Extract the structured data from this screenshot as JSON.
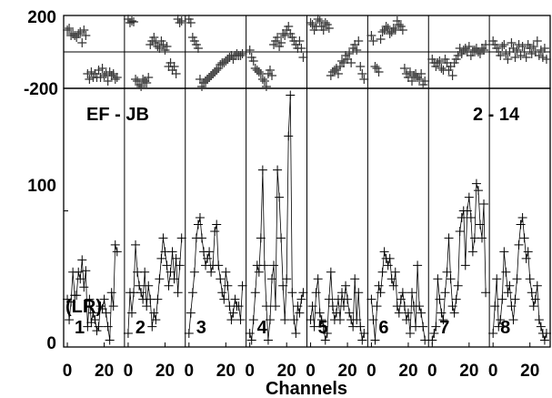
{
  "chart_data": {
    "type": "line",
    "baseline": "EF - JB",
    "label_left": "EF - JB",
    "label_right": "2 - 14",
    "polarization": "(LR)",
    "xlabel": "Channels",
    "x_ticks": [
      "0",
      "20"
    ],
    "x_range": [
      -2,
      31
    ],
    "phase_panel": {
      "ylim": [
        -200,
        200
      ],
      "y_ticks": [
        "200",
        "-200"
      ]
    },
    "amp_panel": {
      "ylim": [
        0,
        190
      ],
      "y_ticks": [
        "100",
        "0"
      ]
    },
    "subbands": [
      {
        "label": "1",
        "amp": [
          35,
          20,
          33,
          55,
          38,
          38,
          55,
          50,
          64,
          44,
          56,
          15,
          35,
          18,
          25,
          20,
          12,
          15,
          30,
          28,
          35,
          25,
          15,
          5,
          40,
          30,
          75,
          70
        ],
        "phase": [
          120,
          130,
          90,
          100,
          90,
          80,
          100,
          110,
          50,
          120,
          90,
          -120,
          -150,
          -110,
          -140,
          -120,
          -140,
          -100,
          -140,
          -90,
          -130,
          -120,
          -160,
          -110,
          -130,
          -120,
          -150,
          -140
        ]
      },
      {
        "label": "2",
        "amp": [
          10,
          40,
          25,
          40,
          75,
          55,
          45,
          40,
          35,
          55,
          30,
          45,
          35,
          15,
          25,
          20,
          35,
          50,
          65,
          80,
          70,
          60,
          45,
          55,
          70,
          50,
          65,
          40,
          60,
          80
        ],
        "phase": [
          180,
          160,
          170,
          165,
          -150,
          -160,
          -180,
          -190,
          -150,
          -160,
          -170,
          -140,
          40,
          60,
          80,
          50,
          30,
          20,
          60,
          40,
          10,
          30,
          -80,
          -60,
          -100,
          -80,
          -120,
          180,
          160,
          170
        ]
      },
      {
        "label": "3",
        "amp": [
          10,
          25,
          40,
          55,
          80,
          90,
          95,
          80,
          70,
          60,
          65,
          70,
          55,
          60,
          85,
          90,
          60,
          50,
          40,
          35,
          55,
          45,
          30,
          20,
          25,
          35,
          30,
          30,
          20,
          45
        ],
        "phase": [
          180,
          160,
          80,
          60,
          40,
          20,
          -150,
          -190,
          -170,
          -160,
          -150,
          -140,
          -130,
          -120,
          -110,
          -100,
          -90,
          -70,
          -60,
          -60,
          -50,
          -40,
          -30,
          -20,
          -40,
          -20,
          -10,
          -20,
          -20,
          -10
        ]
      },
      {
        "label": "4",
        "amp": [
          10,
          5,
          20,
          40,
          60,
          55,
          80,
          130,
          60,
          30,
          5,
          20,
          50,
          60,
          30,
          130,
          110,
          80,
          45,
          20,
          50,
          155,
          185,
          40,
          20,
          10,
          30,
          25,
          35,
          40
        ],
        "phase": [
          10,
          -30,
          -50,
          -90,
          -100,
          -110,
          -120,
          -150,
          -160,
          -190,
          -120,
          -100,
          -130,
          40,
          60,
          80,
          30,
          50,
          100,
          90,
          120,
          140,
          100,
          80,
          60,
          40,
          20,
          60,
          20,
          -30
        ]
      },
      {
        "label": "5",
        "amp": [
          20,
          30,
          15,
          40,
          50,
          25,
          20,
          15,
          5,
          10,
          35,
          55,
          30,
          20,
          25,
          35,
          20,
          40,
          30,
          45,
          35,
          25,
          20,
          15,
          50,
          20,
          40,
          15,
          5,
          10
        ],
        "phase": [
          160,
          150,
          120,
          140,
          180,
          170,
          140,
          120,
          160,
          150,
          130,
          -130,
          -110,
          -100,
          -90,
          -120,
          -80,
          -50,
          -60,
          -20,
          -40,
          -10,
          -60,
          20,
          40,
          10,
          60,
          -80,
          -120,
          -150
        ]
      },
      {
        "label": "6",
        "amp": [
          35,
          20,
          5,
          30,
          45,
          40,
          55,
          70,
          65,
          60,
          65,
          50,
          45,
          55,
          30,
          25,
          35,
          40,
          30,
          20,
          25,
          10,
          40,
          30,
          15,
          60,
          30,
          25,
          15,
          5
        ],
        "phase": [
          90,
          60,
          -80,
          -90,
          -110,
          70,
          110,
          120,
          140,
          130,
          100,
          110,
          130,
          120,
          170,
          150,
          140,
          120,
          -90,
          -120,
          -140,
          -110,
          -160,
          -130,
          -120,
          -140,
          -150,
          -120,
          -180,
          -160
        ]
      },
      {
        "label": "7",
        "amp": [
          5,
          10,
          15,
          50,
          35,
          25,
          20,
          40,
          55,
          80,
          50,
          30,
          25,
          35,
          45,
          85,
          95,
          100,
          60,
          100,
          110,
          95,
          70,
          80,
          120,
          115,
          90,
          80,
          105,
          40
        ],
        "phase": [
          -40,
          -60,
          -80,
          -60,
          -50,
          -90,
          -100,
          -40,
          -60,
          -100,
          -80,
          -130,
          -60,
          -40,
          -20,
          20,
          -10,
          10,
          20,
          0,
          30,
          -20,
          0,
          10,
          20,
          0,
          -10,
          20,
          10,
          40
        ]
      },
      {
        "label": "8",
        "amp": [
          10,
          30,
          50,
          15,
          20,
          35,
          70,
          55,
          40,
          45,
          30,
          20,
          35,
          50,
          75,
          90,
          95,
          80,
          65,
          70,
          50,
          40,
          30,
          35,
          45,
          20,
          15,
          10,
          5,
          10
        ],
        "phase": [
          60,
          40,
          20,
          0,
          -20,
          30,
          40,
          -10,
          -40,
          0,
          50,
          20,
          -30,
          10,
          40,
          -20,
          30,
          0,
          -30,
          40,
          20,
          -10,
          30,
          0,
          60,
          -20,
          10,
          -30,
          20,
          -40
        ]
      }
    ]
  }
}
